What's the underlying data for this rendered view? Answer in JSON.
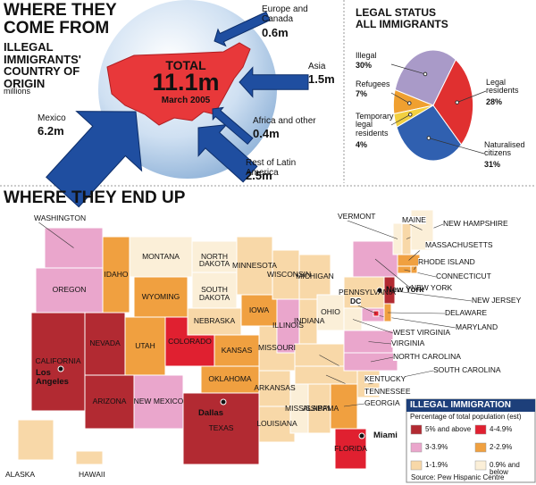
{
  "origin": {
    "title": "WHERE THEY COME FROM",
    "subtitle": "ILLEGAL IMMIGRANTS' COUNTRY OF ORIGIN",
    "unit": "millions",
    "total": {
      "label": "TOTAL",
      "value": 11.1,
      "value_label": "11.1m",
      "date": "March 2005"
    },
    "regions": [
      {
        "name": "Mexico",
        "value": 6.2,
        "value_label": "6.2m"
      },
      {
        "name": "Rest of Latin America",
        "value": 2.5,
        "value_label": "2.5m"
      },
      {
        "name": "Asia",
        "value": 1.5,
        "value_label": "1.5m"
      },
      {
        "name": "Europe and Canada",
        "value": 0.6,
        "value_label": "0.6m"
      },
      {
        "name": "Africa and other",
        "value": 0.4,
        "value_label": "0.4m"
      }
    ]
  },
  "chart_data": {
    "type": "pie",
    "title": "LEGAL STATUS ALL IMMIGRANTS",
    "categories": [
      "Illegal",
      "Refugees",
      "Temporary legal residents",
      "Naturalised citizens",
      "Legal residents"
    ],
    "values": [
      30,
      7,
      4,
      31,
      28
    ],
    "value_labels": [
      "30%",
      "7%",
      "4%",
      "31%",
      "28%"
    ],
    "colors": [
      "#a99ac8",
      "#f0a030",
      "#f2d040",
      "#3060b0",
      "#e03030"
    ]
  },
  "map": {
    "title": "WHERE THEY END UP",
    "states": [
      {
        "name": "WASHINGTON",
        "color": "#eaa6cc"
      },
      {
        "name": "OREGON",
        "color": "#eaa6cc"
      },
      {
        "name": "CALIFORNIA",
        "color": "#b22a32"
      },
      {
        "name": "NEVADA",
        "color": "#b22a32"
      },
      {
        "name": "ARIZONA",
        "color": "#b22a32"
      },
      {
        "name": "IDAHO",
        "color": "#f0a040"
      },
      {
        "name": "MONTANA",
        "color": "#fbefd8"
      },
      {
        "name": "WYOMING",
        "color": "#f0a040"
      },
      {
        "name": "UTAH",
        "color": "#f0a040"
      },
      {
        "name": "COLORADO",
        "color": "#e02030"
      },
      {
        "name": "NEW MEXICO",
        "color": "#eaa6cc"
      },
      {
        "name": "NORTH DAKOTA",
        "color": "#fbefd8"
      },
      {
        "name": "SOUTH DAKOTA",
        "color": "#fbefd8"
      },
      {
        "name": "NEBRASKA",
        "color": "#f8d8a8"
      },
      {
        "name": "KANSAS",
        "color": "#f0a040"
      },
      {
        "name": "OKLAHOMA",
        "color": "#f0a040"
      },
      {
        "name": "TEXAS",
        "color": "#b22a32"
      },
      {
        "name": "MINNESOTA",
        "color": "#f8d8a8"
      },
      {
        "name": "IOWA",
        "color": "#f0a040"
      },
      {
        "name": "MISSOURI",
        "color": "#f8d8a8"
      },
      {
        "name": "ARKANSAS",
        "color": "#f8d8a8"
      },
      {
        "name": "LOUISIANA",
        "color": "#f8d8a8"
      },
      {
        "name": "WISCONSIN",
        "color": "#f8d8a8"
      },
      {
        "name": "ILLINOIS",
        "color": "#eaa6cc"
      },
      {
        "name": "MICHIGAN",
        "color": "#f8d8a8"
      },
      {
        "name": "INDIANA",
        "color": "#f8d8a8"
      },
      {
        "name": "OHIO",
        "color": "#fbefd8"
      },
      {
        "name": "KENTUCKY",
        "color": "#f8d8a8"
      },
      {
        "name": "TENNESSEE",
        "color": "#f8d8a8"
      },
      {
        "name": "MISSISSIPPI",
        "color": "#fbefd8"
      },
      {
        "name": "ALABAMA",
        "color": "#f8d8a8"
      },
      {
        "name": "GEORGIA",
        "color": "#f0a040"
      },
      {
        "name": "FLORIDA",
        "color": "#e02030"
      },
      {
        "name": "SOUTH CAROLINA",
        "color": "#f8d8a8"
      },
      {
        "name": "NORTH CAROLINA",
        "color": "#eaa6cc"
      },
      {
        "name": "VIRGINIA",
        "color": "#eaa6cc"
      },
      {
        "name": "WEST VIRGINIA",
        "color": "#fbefd8"
      },
      {
        "name": "PENNSYLVANIA",
        "color": "#f8d8a8"
      },
      {
        "name": "NEW YORK",
        "color": "#eaa6cc"
      },
      {
        "name": "MARYLAND",
        "color": "#eaa6cc"
      },
      {
        "name": "DELAWARE",
        "color": "#f0a040"
      },
      {
        "name": "NEW JERSEY",
        "color": "#b22a32"
      },
      {
        "name": "CONNECTICUT",
        "color": "#f0a040"
      },
      {
        "name": "RHODE ISLAND",
        "color": "#f0a040"
      },
      {
        "name": "MASSACHUSETTS",
        "color": "#f0a040"
      },
      {
        "name": "VERMONT",
        "color": "#fbefd8"
      },
      {
        "name": "NEW HAMPSHIRE",
        "color": "#f8d8a8"
      },
      {
        "name": "MAINE",
        "color": "#fbefd8"
      },
      {
        "name": "DC",
        "color": "#e02030"
      },
      {
        "name": "ALASKA",
        "color": "#f8d8a8"
      },
      {
        "name": "HAWAII",
        "color": "#f8d8a8"
      }
    ],
    "cities": [
      "Los Angeles",
      "Dallas",
      "Miami",
      "New York"
    ],
    "legend": {
      "title": "ILLEGAL IMMIGRATION",
      "subtitle": "Percentage of total population (est)",
      "items": [
        {
          "label": "5% and above",
          "color": "#b22a32"
        },
        {
          "label": "4-4.9%",
          "color": "#e02030"
        },
        {
          "label": "3-3.9%",
          "color": "#eaa6cc"
        },
        {
          "label": "2-2.9%",
          "color": "#f0a040"
        },
        {
          "label": "1-1.9%",
          "color": "#f8d8a8"
        },
        {
          "label": "0.9% and below",
          "color": "#fbefd8"
        }
      ]
    },
    "source": "Source: Pew Hispanic Centre"
  }
}
